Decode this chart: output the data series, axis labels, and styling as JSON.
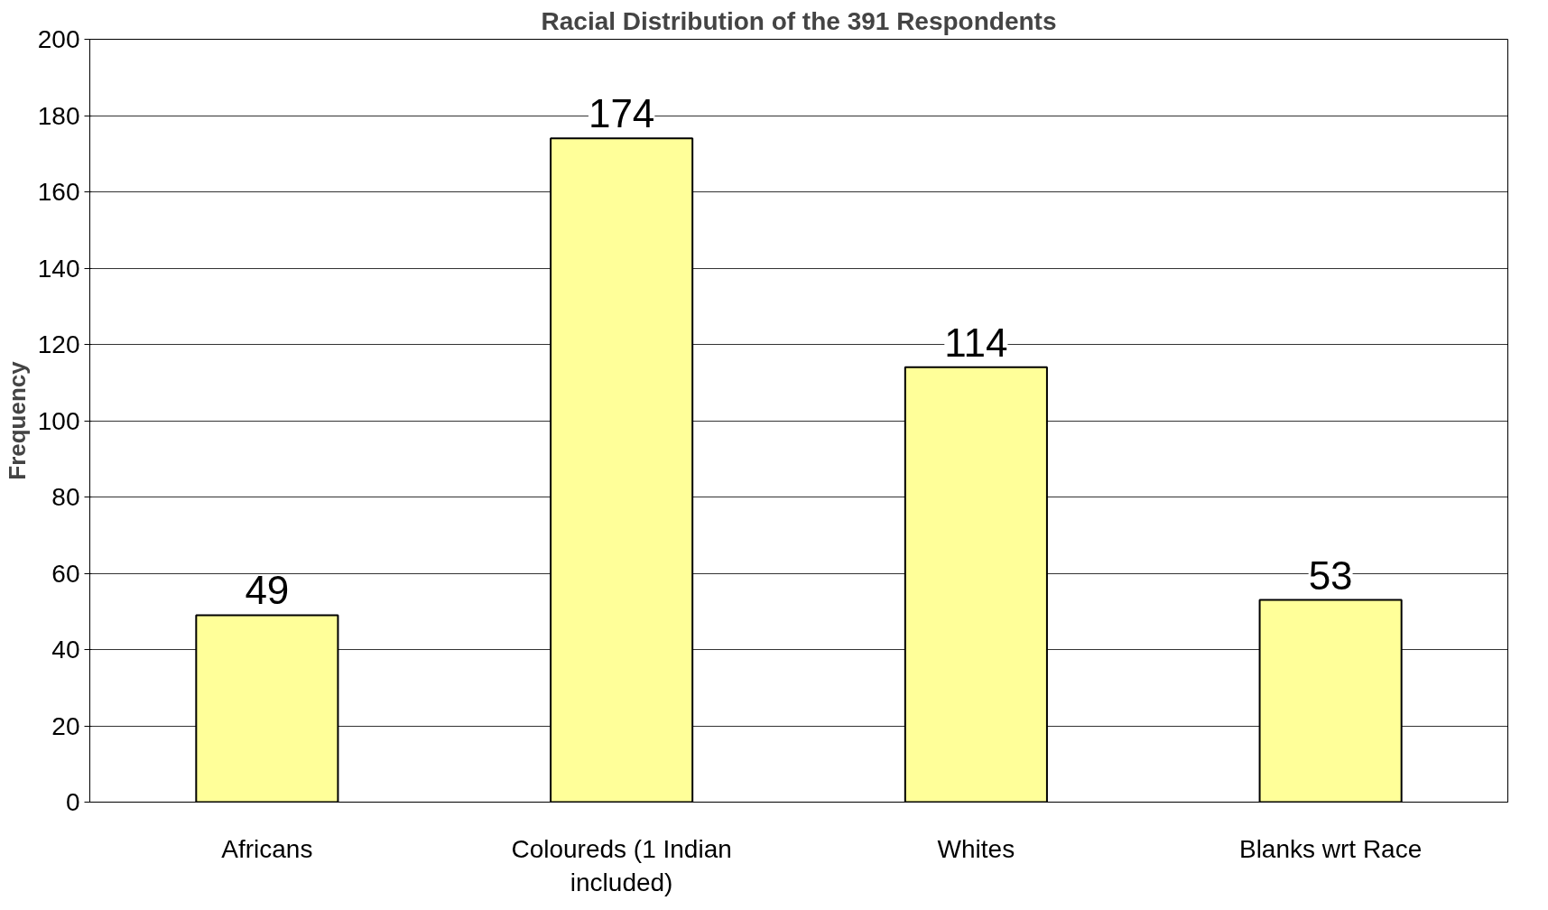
{
  "chart_data": {
    "type": "bar",
    "title": "Racial Distribution of the 391 Respondents",
    "ylabel": "Frequency",
    "categories": [
      "Africans",
      "Coloureds (1 Indian included)",
      "Whites",
      "Blanks wrt Race"
    ],
    "values": [
      49,
      174,
      114,
      53
    ],
    "color": "#ffff99",
    "ylim": [
      0,
      200
    ],
    "yticks": [
      0,
      20,
      40,
      60,
      80,
      100,
      120,
      140,
      160,
      180,
      200
    ],
    "grid": "y",
    "data_labels": true
  }
}
